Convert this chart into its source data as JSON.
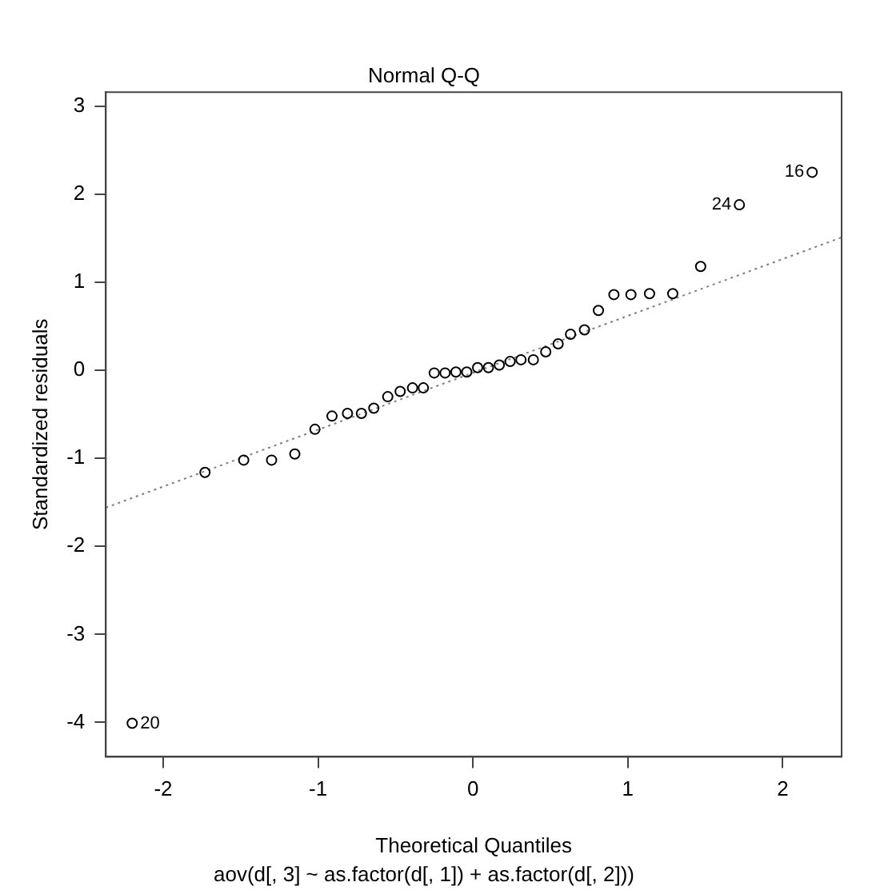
{
  "chart_data": {
    "type": "scatter",
    "title": "Normal Q-Q",
    "subtitle": "aov(d[, 3] ~ as.factor(d[, 1]) + as.factor(d[, 2]))",
    "xlabel": "Theoretical Quantiles",
    "ylabel": "Standardized residuals",
    "xlim": [
      -2.37,
      2.38
    ],
    "ylim": [
      -4.39,
      3.16
    ],
    "xticks": [
      -2,
      -1,
      0,
      1,
      2
    ],
    "yticks": [
      -4,
      -3,
      -2,
      -1,
      0,
      1,
      2,
      3
    ],
    "grid": false,
    "legend": false,
    "series": [
      {
        "type": "scatter",
        "marker": "circle",
        "color": "#000000",
        "x": [
          -2.2,
          -1.73,
          -1.48,
          -1.3,
          -1.15,
          -1.02,
          -0.91,
          -0.81,
          -0.72,
          -0.64,
          -0.55,
          -0.47,
          -0.39,
          -0.32,
          -0.25,
          -0.18,
          -0.11,
          -0.04,
          0.03,
          0.1,
          0.17,
          0.24,
          0.31,
          0.39,
          0.47,
          0.55,
          0.63,
          0.72,
          0.81,
          0.91,
          1.02,
          1.14,
          1.29,
          1.47,
          1.72,
          2.19
        ],
        "values": [
          -4.01,
          -1.16,
          -1.02,
          -1.02,
          -0.95,
          -0.67,
          -0.52,
          -0.49,
          -0.49,
          -0.43,
          -0.3,
          -0.24,
          -0.2,
          -0.2,
          -0.03,
          -0.03,
          -0.02,
          -0.02,
          0.03,
          0.03,
          0.06,
          0.1,
          0.12,
          0.12,
          0.21,
          0.3,
          0.41,
          0.46,
          0.68,
          0.86,
          0.86,
          0.87,
          0.87,
          1.18,
          1.88,
          2.25
        ]
      },
      {
        "type": "line",
        "marker": "none",
        "line_style": "dotted",
        "color": "#808080",
        "x": [
          -2.37,
          2.38
        ],
        "values": [
          -1.56,
          1.51
        ]
      }
    ],
    "annotations": [
      {
        "text": "20",
        "x": -2.2,
        "y": -4.01
      },
      {
        "text": "24",
        "x": 1.72,
        "y": 1.88
      },
      {
        "text": "16",
        "x": 2.19,
        "y": 2.25
      }
    ]
  }
}
